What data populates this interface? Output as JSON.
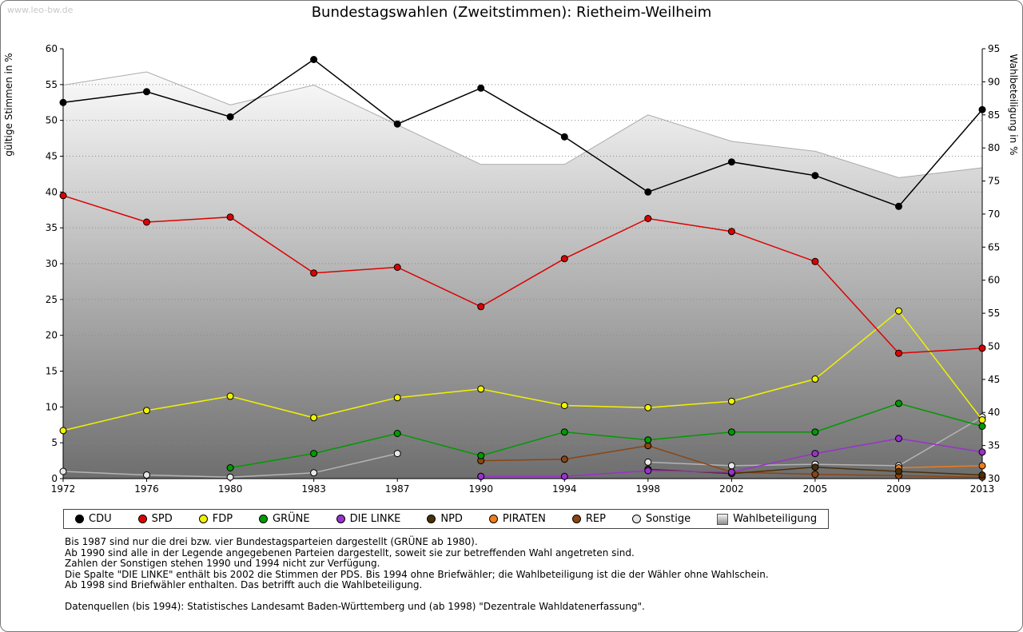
{
  "watermark": "www.leo-bw.de",
  "title": "Bundestagswahlen (Zweitstimmen): Rietheim-Weilheim",
  "chart_data": {
    "type": "line",
    "title": "Bundestagswahlen (Zweitstimmen): Rietheim-Weilheim",
    "categories": [
      "1972",
      "1976",
      "1980",
      "1983",
      "1987",
      "1990",
      "1994",
      "1998",
      "2002",
      "2005",
      "2009",
      "2013"
    ],
    "left_axis": {
      "label": "gültige Stimmen in %",
      "min": 0,
      "max": 60,
      "step": 5
    },
    "right_axis": {
      "label": "Wahlbeteiligung in %",
      "min": 30,
      "max": 95,
      "step": 5
    },
    "grid": true,
    "legend_position": "bottom",
    "series": [
      {
        "name": "CDU",
        "color": "#000000",
        "values": [
          52.5,
          54.0,
          50.5,
          58.5,
          49.5,
          54.5,
          47.7,
          40.0,
          44.2,
          42.3,
          38.0,
          51.5
        ]
      },
      {
        "name": "SPD",
        "color": "#dd0000",
        "values": [
          39.5,
          35.8,
          36.5,
          28.7,
          29.5,
          24.0,
          30.7,
          36.3,
          34.5,
          30.3,
          17.5,
          18.2
        ]
      },
      {
        "name": "FDP",
        "color": "#f2f200",
        "values": [
          6.7,
          9.5,
          11.5,
          8.5,
          11.3,
          12.5,
          10.2,
          9.9,
          10.8,
          13.9,
          23.4,
          8.2
        ]
      },
      {
        "name": "GRÜNE",
        "color": "#009a00",
        "values": [
          null,
          null,
          1.5,
          3.5,
          6.3,
          3.2,
          6.5,
          5.4,
          6.5,
          6.5,
          10.5,
          7.3
        ]
      },
      {
        "name": "DIE LINKE",
        "color": "#9932cc",
        "values": [
          null,
          null,
          null,
          null,
          null,
          0.3,
          0.3,
          1.1,
          0.9,
          3.5,
          5.6,
          3.7
        ]
      },
      {
        "name": "NPD",
        "color": "#4a3008",
        "values": [
          null,
          null,
          null,
          null,
          null,
          0.3,
          null,
          1.3,
          0.7,
          1.6,
          1.0,
          0.5
        ]
      },
      {
        "name": "PIRATEN",
        "color": "#ef7d1a",
        "values": [
          null,
          null,
          null,
          null,
          null,
          null,
          null,
          null,
          null,
          null,
          1.5,
          1.8
        ]
      },
      {
        "name": "REP",
        "color": "#8b4513",
        "values": [
          null,
          null,
          null,
          null,
          null,
          2.5,
          2.7,
          4.6,
          0.9,
          0.6,
          0.4,
          0.2
        ]
      },
      {
        "name": "Sonstige",
        "color": "#b4b4b4",
        "marker": "#e8e8e8",
        "values": [
          1.0,
          0.5,
          0.2,
          0.8,
          3.5,
          null,
          null,
          2.3,
          1.8,
          2.0,
          1.8,
          8.6
        ]
      },
      {
        "name": "Wahlbeteiligung",
        "type": "area",
        "axis": "right",
        "color_top": "#fbfbfb",
        "color_bottom": "#6e6e6e",
        "outline": "#ababab",
        "values": [
          89.5,
          91.5,
          86.5,
          89.5,
          83.5,
          77.5,
          77.5,
          85.0,
          81.0,
          79.5,
          75.5,
          77.0
        ]
      }
    ]
  },
  "footnotes": [
    "Bis 1987 sind nur die drei bzw. vier Bundestagsparteien dargestellt (GRÜNE ab 1980).",
    "Ab 1990 sind alle in der Legende angegebenen Parteien dargestellt, soweit sie zur betreffenden Wahl angetreten sind.",
    "Zahlen der Sonstigen stehen 1990 und 1994 nicht zur Verfügung.",
    "Die Spalte \"DIE LINKE\" enthält bis 2002 die Stimmen der PDS. Bis 1994 ohne Briefwähler; die Wahlbeteiligung ist die der Wähler ohne Wahlschein.",
    "Ab 1998 sind Briefwähler enthalten. Das betrifft auch die Wahlbeteiligung.",
    "",
    "Datenquellen (bis 1994): Statistisches Landesamt Baden-Württemberg und (ab 1998) \"Dezentrale Wahldatenerfassung\"."
  ]
}
